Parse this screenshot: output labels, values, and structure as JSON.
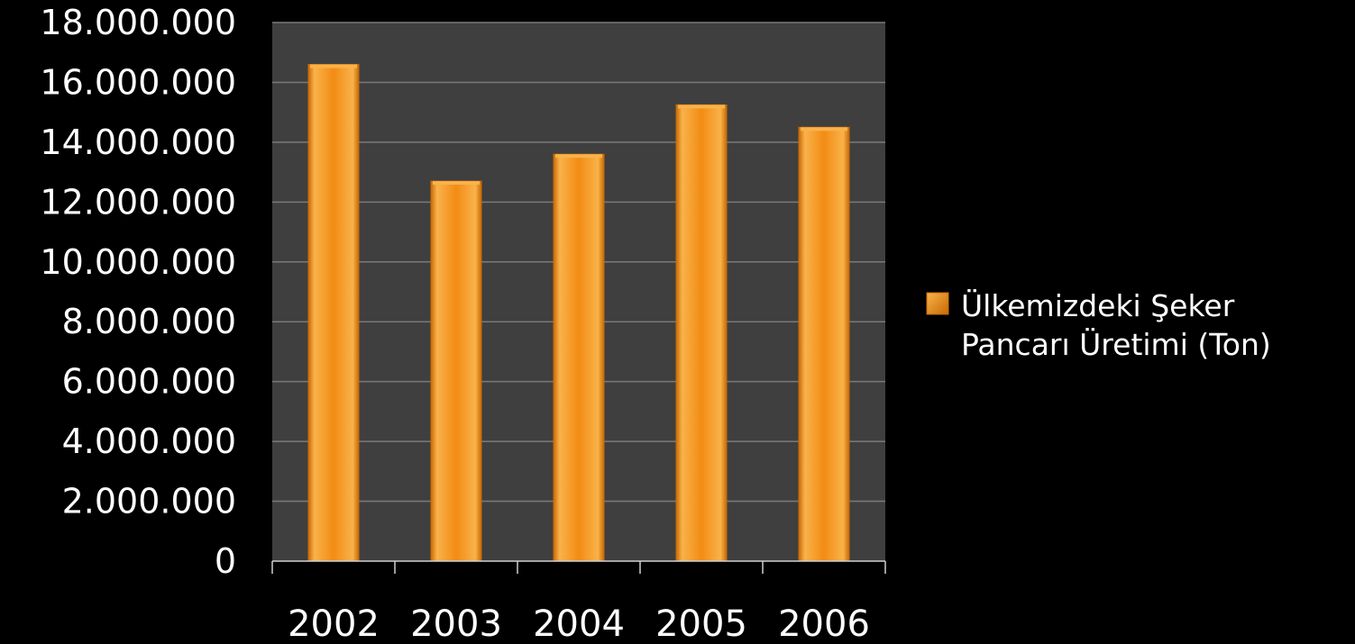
{
  "chart_data": {
    "type": "bar",
    "categories": [
      "2002",
      "2003",
      "2004",
      "2005",
      "2006"
    ],
    "series": [
      {
        "name": "Ülkemizdeki Şeker Pancarı Üretimi (Ton)",
        "values": [
          16600000,
          12700000,
          13600000,
          15250000,
          14500000
        ]
      }
    ],
    "ylim": [
      0,
      18000000
    ],
    "yticks": [
      0,
      2000000,
      4000000,
      6000000,
      8000000,
      10000000,
      12000000,
      14000000,
      16000000,
      18000000
    ],
    "ytick_labels": [
      "0",
      "2.000.000",
      "4.000.000",
      "6.000.000",
      "8.000.000",
      "10.000.000",
      "12.000.000",
      "14.000.000",
      "16.000.000",
      "18.000.000"
    ],
    "legend_lines": [
      "Ülkemizdeki Şeker",
      "Pancarı Üretimi (Ton)"
    ],
    "grid": true,
    "legend_position": "right",
    "colors": {
      "background": "#000000",
      "plot_area": "#3f3f3f",
      "gridline": "#7a7a7a",
      "bar": "#f28c14",
      "bar_light": "#f9b24a",
      "bar_dark": "#c96a05",
      "text": "#ffffff"
    }
  }
}
